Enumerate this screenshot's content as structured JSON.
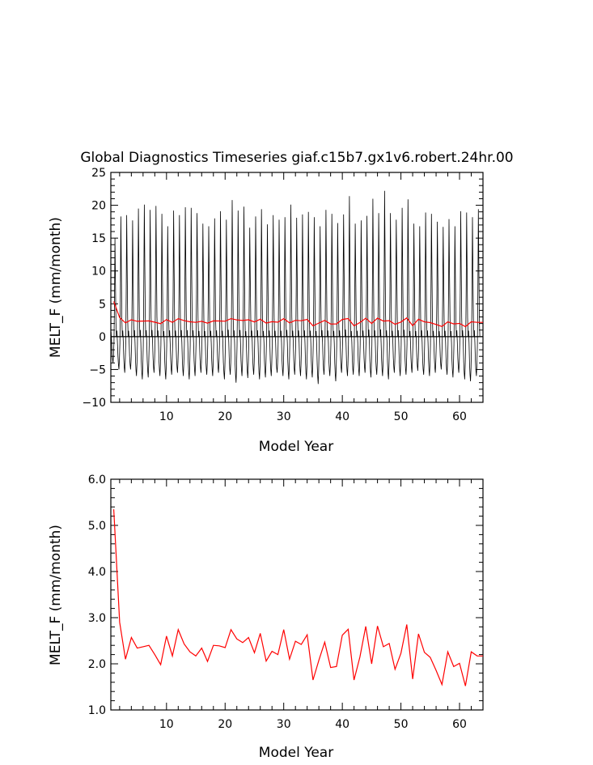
{
  "chart_data": [
    {
      "type": "line",
      "title": "Global Diagnostics Timeseries giaf.c15b7.gx1v6.robert.24hr.00",
      "xlabel": "Model Year",
      "ylabel": "MELT_F (mm/month)",
      "xlim": [
        0.5,
        64
      ],
      "ylim": [
        -10,
        25
      ],
      "xticks": [
        "10",
        "20",
        "30",
        "40",
        "50",
        "60"
      ],
      "yticks": [
        "−10",
        "−5",
        "0",
        "5",
        "10",
        "15",
        "20",
        "25"
      ],
      "zero_line": true,
      "colors": {
        "monthly": "#000000",
        "annual": "#ff0000"
      },
      "monthly_peaks": [
        15.0,
        18.3,
        18.5,
        17.7,
        19.5,
        20.1,
        19.3,
        19.9,
        18.7,
        16.8,
        19.2,
        18.5,
        19.7,
        19.6,
        18.8,
        17.2,
        16.8,
        18.0,
        19.1,
        17.8,
        20.8,
        19.2,
        19.8,
        16.6,
        18.3,
        19.4,
        17.1,
        18.5,
        17.8,
        18.2,
        20.1,
        18.1,
        18.6,
        19.0,
        18.2,
        16.8,
        19.3,
        18.7,
        17.3,
        18.6,
        21.4,
        17.2,
        17.7,
        18.4,
        21.0,
        18.8,
        22.2,
        18.8,
        17.8,
        19.6,
        20.9,
        17.2,
        16.8,
        18.9,
        18.7,
        17.5,
        16.7,
        17.9,
        16.8,
        19.1,
        18.9,
        18.2,
        19.4
      ],
      "monthly_troughs": [
        -4.0,
        -5.0,
        -5.5,
        -5.0,
        -6.0,
        -6.5,
        -6.2,
        -5.5,
        -6.0,
        -6.5,
        -5.8,
        -5.5,
        -6.0,
        -6.5,
        -6.0,
        -5.5,
        -5.8,
        -6.0,
        -5.5,
        -6.5,
        -5.8,
        -7.0,
        -6.0,
        -6.3,
        -5.8,
        -6.5,
        -6.2,
        -6.0,
        -5.5,
        -6.0,
        -6.5,
        -5.8,
        -6.0,
        -6.5,
        -6.2,
        -7.2,
        -5.8,
        -6.0,
        -6.8,
        -5.5,
        -6.0,
        -5.8,
        -6.0,
        -5.5,
        -6.2,
        -5.8,
        -6.0,
        -6.5,
        -5.5,
        -6.0,
        -5.8,
        -5.5,
        -5.2,
        -5.8,
        -6.0,
        -5.5,
        -5.0,
        -5.8,
        -6.2,
        -5.5,
        -6.5,
        -6.8,
        -6.0
      ]
    },
    {
      "type": "line",
      "xlabel": "Model Year",
      "ylabel": "MELT_F (mm/month)",
      "xlim": [
        0.5,
        64
      ],
      "ylim": [
        1.0,
        6.0
      ],
      "xticks": [
        "10",
        "20",
        "30",
        "40",
        "50",
        "60"
      ],
      "yticks": [
        "1.0",
        "2.0",
        "3.0",
        "4.0",
        "5.0",
        "6.0"
      ],
      "color": "#ff0000",
      "x": [
        1,
        2,
        3,
        4,
        5,
        6,
        7,
        8,
        9,
        10,
        11,
        12,
        13,
        14,
        15,
        16,
        17,
        18,
        19,
        20,
        21,
        22,
        23,
        24,
        25,
        26,
        27,
        28,
        29,
        30,
        31,
        32,
        33,
        34,
        35,
        36,
        37,
        38,
        39,
        40,
        41,
        42,
        43,
        44,
        45,
        46,
        47,
        48,
        49,
        50,
        51,
        52,
        53,
        54,
        55,
        56,
        57,
        58,
        59,
        60,
        61,
        62,
        63,
        64
      ],
      "values": [
        5.35,
        2.9,
        2.1,
        2.57,
        2.34,
        2.37,
        2.4,
        2.2,
        1.98,
        2.6,
        2.17,
        2.74,
        2.43,
        2.26,
        2.17,
        2.34,
        2.05,
        2.4,
        2.39,
        2.35,
        2.74,
        2.54,
        2.46,
        2.57,
        2.24,
        2.66,
        2.06,
        2.27,
        2.2,
        2.74,
        2.1,
        2.49,
        2.42,
        2.63,
        1.65,
        2.08,
        2.47,
        1.92,
        1.94,
        2.62,
        2.75,
        1.65,
        2.15,
        2.81,
        2.0,
        2.82,
        2.37,
        2.44,
        1.88,
        2.23,
        2.85,
        1.67,
        2.65,
        2.25,
        2.14,
        1.86,
        1.55,
        2.26,
        1.94,
        2.01,
        1.52,
        2.26,
        2.17,
        2.17
      ]
    }
  ]
}
